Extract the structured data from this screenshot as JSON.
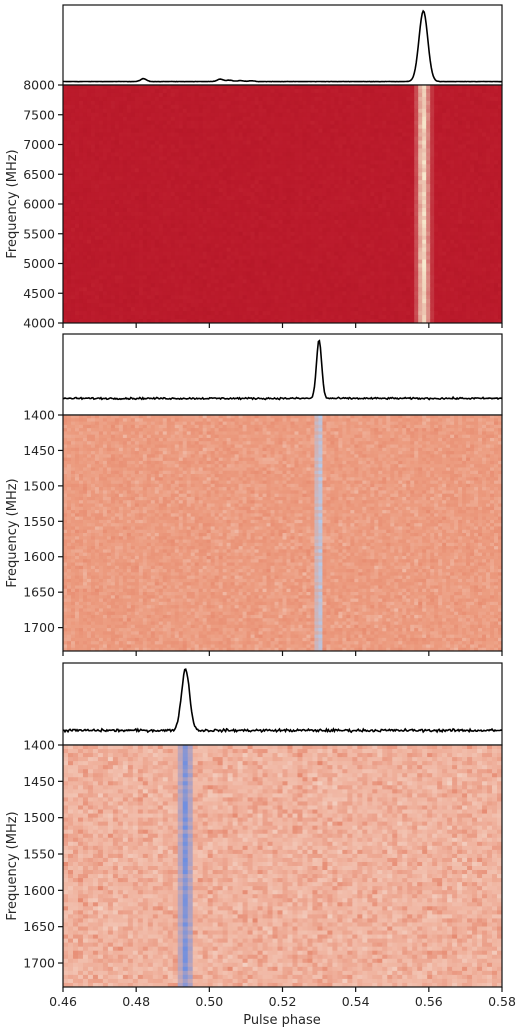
{
  "chart_data": [
    {
      "type": "heatmap",
      "panel": "top",
      "ylabel": "Frequency (MHz)",
      "ylim": [
        4000,
        8000
      ],
      "y_inverted": false,
      "yticks": [
        4000,
        4500,
        5000,
        5500,
        6000,
        6500,
        7000,
        7500,
        8000
      ],
      "xlim": [
        0.46,
        0.58
      ],
      "x_tick_labels_shown": false,
      "colormap": "red-dominant",
      "background_color": "#bb1a2b",
      "pulse_color": "#f8edd0",
      "profile": {
        "type": "line",
        "baseline": 0.02,
        "peaks": [
          {
            "phase": 0.5585,
            "amplitude": 1.0,
            "width": 0.0012
          },
          {
            "phase": 0.482,
            "amplitude": 0.04,
            "width": 0.0008
          },
          {
            "phase": 0.503,
            "amplitude": 0.035,
            "width": 0.0008
          },
          {
            "phase": 0.5055,
            "amplitude": 0.02,
            "width": 0.0008
          },
          {
            "phase": 0.5085,
            "amplitude": 0.015,
            "width": 0.0008
          },
          {
            "phase": 0.5115,
            "amplitude": 0.012,
            "width": 0.0008
          }
        ]
      }
    },
    {
      "type": "heatmap",
      "panel": "middle",
      "ylabel": "Frequency (MHz)",
      "ylim": [
        1400,
        1733
      ],
      "y_inverted": true,
      "yticks": [
        1400,
        1450,
        1500,
        1550,
        1600,
        1650,
        1700
      ],
      "xlim": [
        0.46,
        0.58
      ],
      "x_tick_labels_shown": false,
      "colormap": "coolwarm",
      "background_color": "#ec9c80",
      "pulse_color": "#b3c9ea",
      "profile": {
        "type": "line",
        "baseline": 0.2,
        "peaks": [
          {
            "phase": 0.53,
            "amplitude": 1.0,
            "width": 0.0007
          }
        ]
      }
    },
    {
      "type": "heatmap",
      "panel": "bottom",
      "ylabel": "Frequency (MHz)",
      "xlabel": "Pulse phase",
      "ylim": [
        1400,
        1733
      ],
      "y_inverted": true,
      "yticks": [
        1400,
        1450,
        1500,
        1550,
        1600,
        1650,
        1700
      ],
      "xlim": [
        0.46,
        0.58
      ],
      "xticks": [
        0.46,
        0.48,
        0.5,
        0.52,
        0.54,
        0.56,
        0.58
      ],
      "x_tick_labels": [
        "0.46",
        "0.48",
        "0.50",
        "0.52",
        "0.54",
        "0.56",
        "0.58"
      ],
      "x_tick_labels_shown": true,
      "colormap": "coolwarm",
      "background_color": "#f0b4a0",
      "pulse_color": "#6f8fe0",
      "profile": {
        "type": "line",
        "baseline": 0.17,
        "peaks": [
          {
            "phase": 0.4935,
            "amplitude": 1.0,
            "width": 0.0011
          }
        ]
      }
    }
  ]
}
